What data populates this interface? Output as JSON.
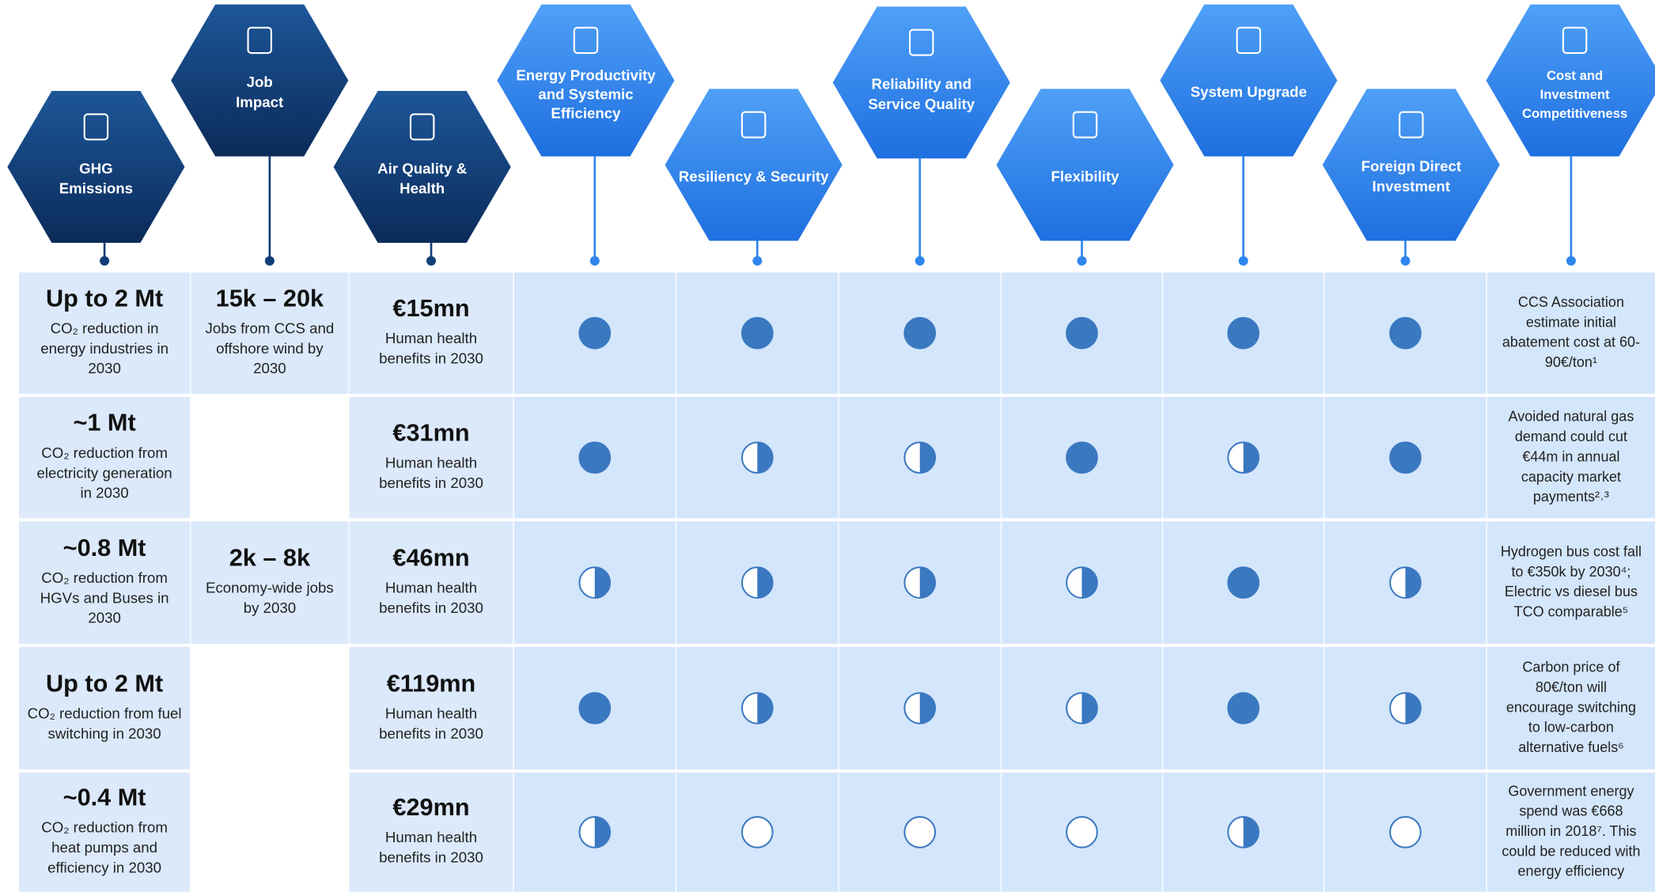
{
  "headers": [
    {
      "label": [
        "GHG",
        "Emissions"
      ]
    },
    {
      "label": [
        "Job",
        "Impact"
      ]
    },
    {
      "label": [
        "Air Quality &",
        "Health"
      ]
    },
    {
      "label": [
        "Energy Productivity",
        "and Systemic",
        "Efficiency"
      ]
    },
    {
      "label": [
        "Resiliency & Security"
      ]
    },
    {
      "label": [
        "Reliability and",
        "Service Quality"
      ]
    },
    {
      "label": [
        "Flexibility"
      ]
    },
    {
      "label": [
        "System Upgrade"
      ]
    },
    {
      "label": [
        "Foreign Direct",
        "Investment"
      ]
    },
    {
      "label": [
        "Cost and",
        "Investment",
        "Competitiveness"
      ]
    }
  ],
  "rows": [
    {
      "ghg": {
        "figure": "Up to 2 Mt",
        "text": [
          "CO₂ reduction in",
          "energy industries in",
          "2030"
        ]
      },
      "jobs": {
        "figure": "15k – 20k",
        "text": [
          "Jobs from CCS and",
          "offshore wind by",
          "2030"
        ]
      },
      "air": {
        "figure": "€15mn",
        "text": [
          "Human health",
          "benefits in 2030"
        ]
      },
      "ratings": [
        1,
        1,
        1,
        1,
        1,
        1
      ],
      "cost": [
        "CCS Association",
        "estimate initial",
        "abatement cost at 60-",
        "90€/ton¹"
      ]
    },
    {
      "ghg": {
        "figure": "~1 Mt",
        "text": [
          "CO₂ reduction from",
          "electricity generation",
          "in 2030"
        ]
      },
      "air": {
        "figure": "€31mn",
        "text": [
          "Human health",
          "benefits in 2030"
        ]
      },
      "ratings": [
        1,
        0.5,
        0.5,
        1,
        0.5,
        1
      ],
      "cost": [
        "Avoided natural gas",
        "demand could cut",
        "€44m in annual",
        "capacity market",
        "payments²˒³"
      ]
    },
    {
      "ghg": {
        "figure": "~0.8 Mt",
        "text": [
          "CO₂ reduction from",
          "HGVs and Buses in",
          "2030"
        ]
      },
      "jobs": {
        "figure": "2k – 8k",
        "text": [
          "Economy-wide jobs",
          "by 2030"
        ]
      },
      "air": {
        "figure": "€46mn",
        "text": [
          "Human health",
          "benefits in 2030"
        ]
      },
      "ratings": [
        0.5,
        0.5,
        0.5,
        0.5,
        1,
        0.5
      ],
      "cost": [
        "Hydrogen bus cost fall",
        "to €350k by 2030⁴;",
        "Electric vs diesel bus",
        "TCO comparable⁵"
      ]
    },
    {
      "ghg": {
        "figure": "Up to 2 Mt",
        "text": [
          "CO₂ reduction from fuel",
          "switching in 2030"
        ]
      },
      "air": {
        "figure": "€119mn",
        "text": [
          "Human health",
          "benefits in 2030"
        ]
      },
      "ratings": [
        1,
        0.5,
        0.5,
        0.5,
        1,
        0.5
      ],
      "cost": [
        "Carbon price of",
        "80€/ton will",
        "encourage switching",
        "to low-carbon",
        "alternative fuels⁶"
      ]
    },
    {
      "ghg": {
        "figure": "~0.4 Mt",
        "text": [
          "CO₂ reduction from",
          "heat pumps and",
          "efficiency in 2030"
        ]
      },
      "air": {
        "figure": "€29mn",
        "text": [
          "Human health",
          "benefits in 2030"
        ]
      },
      "ratings": [
        0.5,
        0,
        0,
        0,
        0.5,
        0
      ],
      "cost": [
        "Government energy",
        "spend was €668",
        "million in 2018⁷. This",
        "could be reduced with",
        "energy efficiency"
      ]
    }
  ]
}
